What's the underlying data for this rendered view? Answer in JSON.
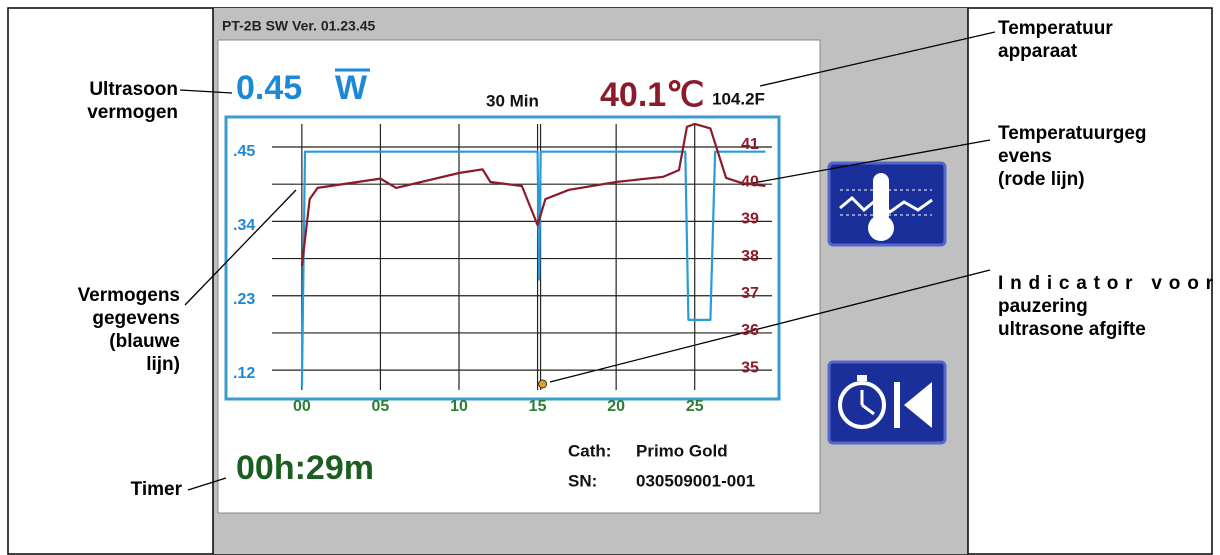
{
  "document": {
    "annotations": {
      "ultrasound_power": [
        "Ultrasoon",
        "vermogen"
      ],
      "device_temperature": [
        "Temperatuur",
        "apparaat"
      ],
      "temperature_data": [
        "Temperatuurgeg",
        "evens",
        "(rode lijn)"
      ],
      "power_data": [
        "Vermogens",
        "gegevens",
        "(blauwe",
        "lijn)"
      ],
      "pause_indicator": [
        "Indicator voor",
        "pauzering",
        "ultrasone afgifte"
      ],
      "timer": [
        "Timer"
      ]
    }
  },
  "screen": {
    "version": "PT-2B SW Ver. 01.23.45",
    "power": "0.45",
    "power_unit": "W",
    "duration": "30 Min",
    "temperature_c": "40.1℃",
    "temperature_f": "104.2F",
    "timer": "00h:29m",
    "cath_label": "Cath:",
    "cath": "Primo Gold",
    "sn_label": "SN:",
    "sn": "030509001-001"
  },
  "chart_data": {
    "type": "line",
    "xlim": [
      -4.7,
      30.3
    ],
    "xticks": [
      {
        "value": 0,
        "label": "00"
      },
      {
        "value": 5,
        "label": "05"
      },
      {
        "value": 10,
        "label": "10"
      },
      {
        "value": 15,
        "label": "15"
      },
      {
        "value": 20,
        "label": "20"
      },
      {
        "value": 25,
        "label": "25"
      }
    ],
    "ylim": [
      0.084,
      0.5
    ],
    "yticks": [
      {
        "value": 0.45,
        "label": ".45"
      },
      {
        "value": 0.34,
        "label": ".34"
      },
      {
        "value": 0.23,
        "label": ".23"
      },
      {
        "value": 0.12,
        "label": ".12"
      }
    ],
    "y2lim": [
      34.25,
      41.78
    ],
    "y2ticks": [
      41,
      40,
      39,
      38,
      37,
      36,
      35
    ],
    "grid": true,
    "pause_markers": [
      15
    ],
    "series": [
      {
        "color": "#2a9ad8",
        "x": [
          0,
          0.2,
          15,
          15.1,
          15.2,
          24.4,
          24.6,
          26.0,
          26.3,
          29.5
        ],
        "values": [
          0.1,
          0.45,
          0.45,
          0.26,
          0.45,
          0.45,
          0.2,
          0.2,
          0.45,
          0.45
        ]
      },
      {
        "color": "#8b1a2a",
        "axis": "y2",
        "x": [
          0,
          0.5,
          1,
          5,
          6,
          10,
          11.5,
          12,
          14,
          15,
          15.5,
          17,
          20,
          23,
          24,
          24.5,
          25,
          26,
          27,
          28,
          29.5
        ],
        "values": [
          37.8,
          39.6,
          39.9,
          40.15,
          39.9,
          40.3,
          40.4,
          40.06,
          39.95,
          38.9,
          39.6,
          39.85,
          40.06,
          40.2,
          40.38,
          41.54,
          41.62,
          41.5,
          40.17,
          40.03,
          39.95
        ]
      }
    ]
  }
}
